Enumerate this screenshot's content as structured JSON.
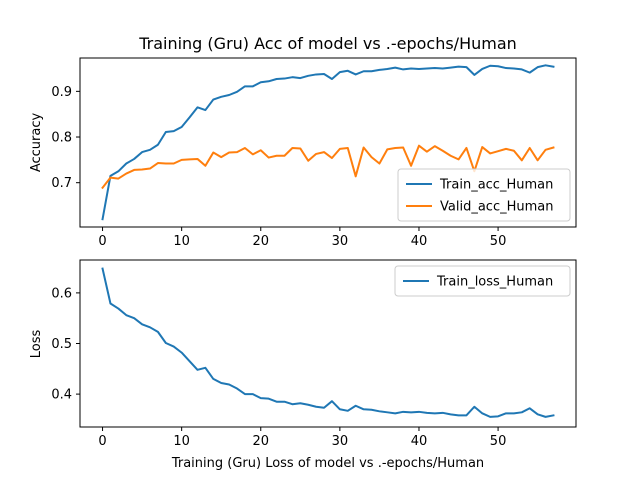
{
  "chart_data": [
    {
      "type": "line",
      "title": "Training (Gru) Acc of model vs .-epochs/Human",
      "xlabel": "",
      "ylabel": "Accuracy",
      "xlim": [
        -2.85,
        59.85
      ],
      "ylim": [
        0.603,
        0.973
      ],
      "xticks": [
        0,
        10,
        20,
        30,
        40,
        50
      ],
      "yticks": [
        0.7,
        0.8,
        0.9
      ],
      "ytick_labels": [
        "0.7",
        "0.8",
        "0.9"
      ],
      "grid": false,
      "legend_position": "lower-right",
      "x": [
        0,
        1,
        2,
        3,
        4,
        5,
        6,
        7,
        8,
        9,
        10,
        11,
        12,
        13,
        14,
        15,
        16,
        17,
        18,
        19,
        20,
        21,
        22,
        23,
        24,
        25,
        26,
        27,
        28,
        29,
        30,
        31,
        32,
        33,
        34,
        35,
        36,
        37,
        38,
        39,
        40,
        41,
        42,
        43,
        44,
        45,
        46,
        47,
        48,
        49,
        50,
        51,
        52,
        53,
        54,
        55,
        56,
        57
      ],
      "series": [
        {
          "name": "Train_acc_Human",
          "color": "#1f77b4",
          "values": [
            0.62,
            0.715,
            0.725,
            0.742,
            0.752,
            0.767,
            0.772,
            0.783,
            0.811,
            0.813,
            0.822,
            0.843,
            0.865,
            0.859,
            0.882,
            0.888,
            0.892,
            0.899,
            0.911,
            0.911,
            0.92,
            0.922,
            0.927,
            0.928,
            0.931,
            0.929,
            0.934,
            0.937,
            0.938,
            0.927,
            0.942,
            0.945,
            0.937,
            0.944,
            0.944,
            0.947,
            0.949,
            0.952,
            0.948,
            0.95,
            0.949,
            0.95,
            0.951,
            0.95,
            0.952,
            0.954,
            0.953,
            0.936,
            0.949,
            0.956,
            0.955,
            0.951,
            0.95,
            0.948,
            0.941,
            0.953,
            0.957,
            0.954
          ]
        },
        {
          "name": "Valid_acc_Human",
          "color": "#ff7f0e",
          "values": [
            0.689,
            0.711,
            0.709,
            0.72,
            0.728,
            0.729,
            0.731,
            0.743,
            0.742,
            0.742,
            0.75,
            0.751,
            0.752,
            0.737,
            0.766,
            0.756,
            0.766,
            0.767,
            0.776,
            0.762,
            0.771,
            0.755,
            0.759,
            0.759,
            0.776,
            0.775,
            0.748,
            0.763,
            0.767,
            0.754,
            0.774,
            0.776,
            0.714,
            0.777,
            0.756,
            0.742,
            0.773,
            0.776,
            0.777,
            0.737,
            0.781,
            0.768,
            0.78,
            0.77,
            0.759,
            0.751,
            0.776,
            0.725,
            0.778,
            0.764,
            0.769,
            0.774,
            0.77,
            0.749,
            0.776,
            0.749,
            0.772,
            0.777
          ]
        }
      ]
    },
    {
      "type": "line",
      "title": "",
      "xlabel": "Training (Gru) Loss of model vs .-epochs/Human",
      "ylabel": "Loss",
      "xlim": [
        -2.85,
        59.85
      ],
      "ylim": [
        0.335,
        0.665
      ],
      "xticks": [
        0,
        10,
        20,
        30,
        40,
        50
      ],
      "yticks": [
        0.4,
        0.5,
        0.6
      ],
      "ytick_labels": [
        "0.4",
        "0.5",
        "0.6"
      ],
      "grid": false,
      "legend_position": "upper-right",
      "x": [
        0,
        1,
        2,
        3,
        4,
        5,
        6,
        7,
        8,
        9,
        10,
        11,
        12,
        13,
        14,
        15,
        16,
        17,
        18,
        19,
        20,
        21,
        22,
        23,
        24,
        25,
        26,
        27,
        28,
        29,
        30,
        31,
        32,
        33,
        34,
        35,
        36,
        37,
        38,
        39,
        40,
        41,
        42,
        43,
        44,
        45,
        46,
        47,
        48,
        49,
        50,
        51,
        52,
        53,
        54,
        55,
        56,
        57
      ],
      "series": [
        {
          "name": "Train_loss_Human",
          "color": "#1f77b4",
          "values": [
            0.648,
            0.579,
            0.569,
            0.556,
            0.55,
            0.538,
            0.532,
            0.523,
            0.501,
            0.494,
            0.482,
            0.465,
            0.448,
            0.452,
            0.43,
            0.422,
            0.419,
            0.411,
            0.4,
            0.4,
            0.392,
            0.391,
            0.385,
            0.385,
            0.38,
            0.382,
            0.379,
            0.375,
            0.373,
            0.386,
            0.37,
            0.367,
            0.377,
            0.37,
            0.369,
            0.366,
            0.364,
            0.362,
            0.365,
            0.364,
            0.365,
            0.363,
            0.362,
            0.363,
            0.36,
            0.358,
            0.358,
            0.375,
            0.362,
            0.355,
            0.356,
            0.362,
            0.362,
            0.364,
            0.372,
            0.36,
            0.355,
            0.358
          ]
        }
      ]
    }
  ]
}
